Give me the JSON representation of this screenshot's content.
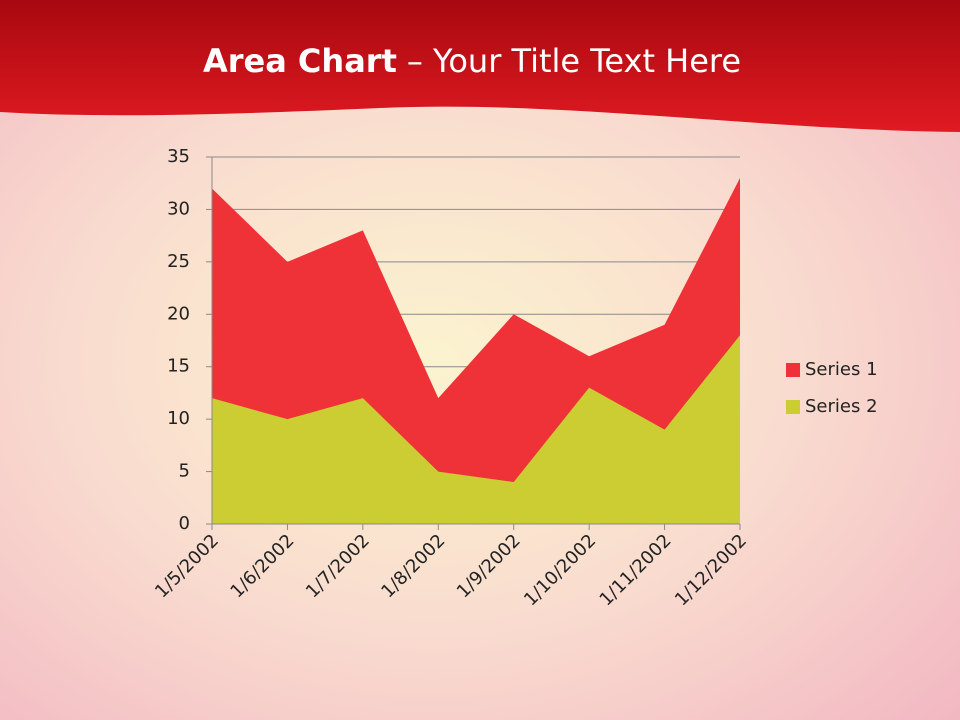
{
  "chart_data": {
    "type": "area",
    "title_parts": [
      "Area Chart",
      "– Your Title Text Here"
    ],
    "categories": [
      "1/5/2002",
      "1/6/2002",
      "1/7/2002",
      "1/8/2002",
      "1/9/2002",
      "1/10/2002",
      "1/11/2002",
      "1/12/2002"
    ],
    "series": [
      {
        "name": "Series 1",
        "color": "#ee3238",
        "values": [
          32,
          25,
          28,
          12,
          20,
          16,
          19,
          33
        ]
      },
      {
        "name": "Series 2",
        "color": "#cccc33",
        "values": [
          12,
          10,
          12,
          5,
          4,
          13,
          9,
          18
        ]
      }
    ],
    "ylim": [
      0,
      35
    ],
    "yticks": [
      0,
      5,
      10,
      15,
      20,
      25,
      30,
      35
    ],
    "grid": true,
    "legend": "right"
  }
}
